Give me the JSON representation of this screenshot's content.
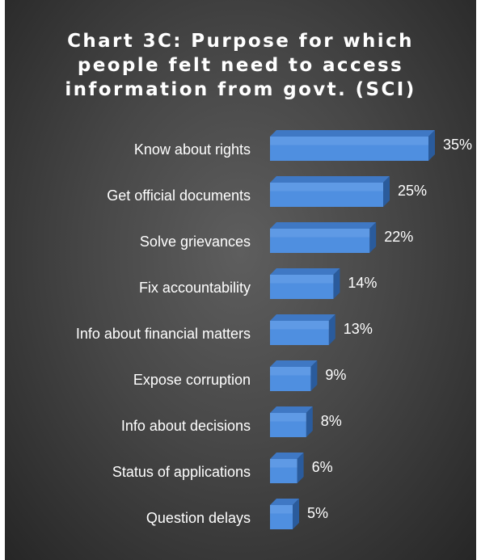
{
  "chart_data": {
    "type": "bar",
    "orientation": "horizontal",
    "title_lines": [
      "Chart 3C: Purpose for which",
      "people felt need to access",
      "information from govt. (SCI)"
    ],
    "categories": [
      "Know about rights",
      "Get official documents",
      "Solve grievances",
      "Fix accountability",
      "Info about financial matters",
      "Expose corruption",
      "Info about decisions",
      "Status of applications",
      "Question delays"
    ],
    "values": [
      35,
      25,
      22,
      14,
      13,
      9,
      8,
      6,
      5
    ],
    "value_labels": [
      "35%",
      "25%",
      "22%",
      "14%",
      "13%",
      "9%",
      "8%",
      "6%",
      "5%"
    ],
    "unit": "%",
    "xlim": [
      0,
      35
    ],
    "grid": false,
    "legend": "none",
    "style": "3d",
    "colors": {
      "bar_front": "#4f8fe0",
      "bar_top": "#3f78c4",
      "bar_side": "#2a5b9c",
      "text": "#ffffff"
    }
  }
}
